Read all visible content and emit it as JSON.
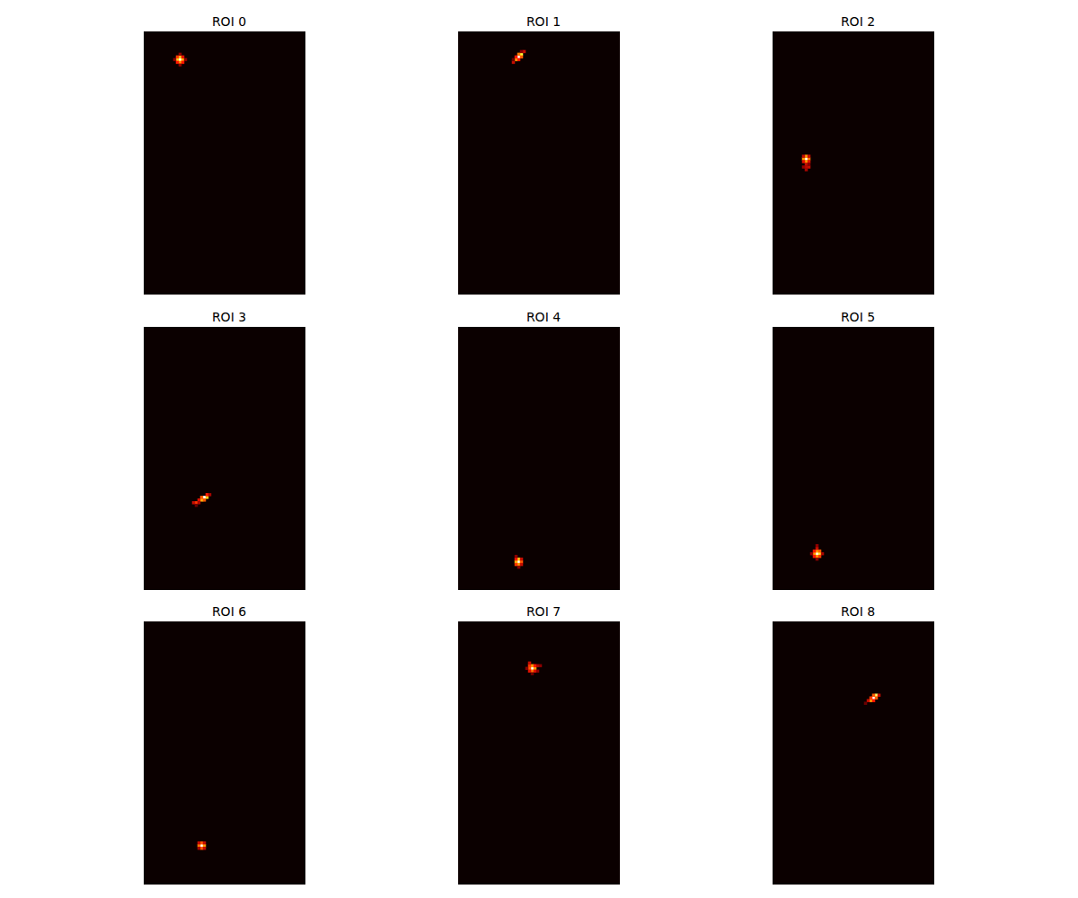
{
  "chart_data": [
    {
      "type": "heatmap",
      "title": "ROI 0",
      "shape": [
        98,
        60
      ],
      "color_range": [
        0,
        1
      ],
      "tick_labels": false,
      "cells": [
        [
          13,
          10,
          1
        ],
        [
          12,
          10,
          0.7
        ],
        [
          14,
          10,
          0.65
        ],
        [
          13,
          9,
          0.7
        ],
        [
          13,
          11,
          0.6
        ],
        [
          12,
          9,
          0.45
        ],
        [
          14,
          9,
          0.35
        ],
        [
          12,
          11,
          0.4
        ],
        [
          14,
          11,
          0.4
        ],
        [
          11,
          10,
          0.2
        ],
        [
          15,
          10,
          0.2
        ],
        [
          13,
          8,
          0.2
        ],
        [
          13,
          12,
          0.2
        ]
      ]
    },
    {
      "type": "heatmap",
      "title": "ROI 1",
      "shape": [
        98,
        60
      ],
      "color_range": [
        0,
        1
      ],
      "tick_labels": false,
      "cells": [
        [
          22,
          9,
          1
        ],
        [
          23,
          8,
          0.8
        ],
        [
          21,
          10,
          0.6
        ],
        [
          22,
          8,
          0.55
        ],
        [
          23,
          9,
          0.5
        ],
        [
          21,
          9,
          0.4
        ],
        [
          22,
          10,
          0.4
        ],
        [
          24,
          7,
          0.3
        ],
        [
          20,
          11,
          0.3
        ],
        [
          23,
          7,
          0.2
        ],
        [
          20,
          10,
          0.15
        ]
      ]
    },
    {
      "type": "heatmap",
      "title": "ROI 2",
      "shape": [
        98,
        60
      ],
      "color_range": [
        0,
        1
      ],
      "tick_labels": false,
      "cells": [
        [
          12,
          47,
          1
        ],
        [
          11,
          47,
          0.6
        ],
        [
          13,
          47,
          0.55
        ],
        [
          12,
          46,
          0.6
        ],
        [
          12,
          48,
          0.6
        ],
        [
          11,
          46,
          0.3
        ],
        [
          13,
          46,
          0.3
        ],
        [
          11,
          48,
          0.35
        ],
        [
          13,
          48,
          0.35
        ],
        [
          12,
          49,
          0.3
        ],
        [
          13,
          50,
          0.3
        ],
        [
          12,
          50,
          0.28
        ],
        [
          11,
          50,
          0.22
        ],
        [
          12,
          51,
          0.25
        ],
        [
          13,
          49,
          0.2
        ]
      ]
    },
    {
      "type": "heatmap",
      "title": "ROI 3",
      "shape": [
        98,
        60
      ],
      "color_range": [
        0,
        1
      ],
      "tick_labels": false,
      "cells": [
        [
          22,
          63,
          1
        ],
        [
          23,
          63,
          0.7
        ],
        [
          21,
          64,
          0.65
        ],
        [
          22,
          64,
          0.5
        ],
        [
          21,
          63,
          0.5
        ],
        [
          23,
          62,
          0.4
        ],
        [
          24,
          62,
          0.25
        ],
        [
          20,
          64,
          0.35
        ],
        [
          19,
          65,
          0.45
        ],
        [
          18,
          65,
          0.3
        ],
        [
          20,
          65,
          0.25
        ],
        [
          19,
          66,
          0.15
        ]
      ]
    },
    {
      "type": "heatmap",
      "title": "ROI 4",
      "shape": [
        98,
        60
      ],
      "color_range": [
        0,
        1
      ],
      "tick_labels": false,
      "cells": [
        [
          22,
          87,
          1
        ],
        [
          21,
          87,
          0.65
        ],
        [
          22,
          86,
          0.7
        ],
        [
          22,
          88,
          0.6
        ],
        [
          23,
          87,
          0.5
        ],
        [
          21,
          86,
          0.4
        ],
        [
          21,
          88,
          0.45
        ],
        [
          23,
          86,
          0.3
        ],
        [
          23,
          88,
          0.3
        ],
        [
          22,
          89,
          0.2
        ],
        [
          21,
          85,
          0.2
        ]
      ]
    },
    {
      "type": "heatmap",
      "title": "ROI 5",
      "shape": [
        98,
        60
      ],
      "color_range": [
        0,
        1
      ],
      "tick_labels": false,
      "cells": [
        [
          16,
          84,
          1
        ],
        [
          17,
          84,
          0.75
        ],
        [
          15,
          84,
          0.6
        ],
        [
          16,
          83,
          0.6
        ],
        [
          16,
          85,
          0.6
        ],
        [
          17,
          83,
          0.5
        ],
        [
          15,
          85,
          0.4
        ],
        [
          17,
          85,
          0.45
        ],
        [
          15,
          83,
          0.4
        ],
        [
          16,
          82,
          0.3
        ],
        [
          16,
          81,
          0.2
        ],
        [
          14,
          84,
          0.2
        ],
        [
          18,
          84,
          0.25
        ],
        [
          16,
          86,
          0.2
        ]
      ]
    },
    {
      "type": "heatmap",
      "title": "ROI 6",
      "shape": [
        98,
        60
      ],
      "color_range": [
        0,
        1
      ],
      "tick_labels": false,
      "cells": [
        [
          21,
          83,
          1
        ],
        [
          22,
          83,
          0.6
        ],
        [
          20,
          83,
          0.55
        ],
        [
          21,
          82,
          0.5
        ],
        [
          21,
          84,
          0.5
        ],
        [
          20,
          82,
          0.3
        ],
        [
          22,
          82,
          0.3
        ],
        [
          20,
          84,
          0.25
        ],
        [
          22,
          84,
          0.3
        ]
      ]
    },
    {
      "type": "heatmap",
      "title": "ROI 7",
      "shape": [
        98,
        60
      ],
      "color_range": [
        0,
        1
      ],
      "tick_labels": false,
      "cells": [
        [
          27,
          17,
          1
        ],
        [
          28,
          17,
          0.6
        ],
        [
          26,
          17,
          0.5
        ],
        [
          27,
          16,
          0.6
        ],
        [
          27,
          18,
          0.55
        ],
        [
          26,
          16,
          0.45
        ],
        [
          28,
          16,
          0.4
        ],
        [
          26,
          18,
          0.35
        ],
        [
          28,
          18,
          0.35
        ],
        [
          26,
          15,
          0.3
        ],
        [
          29,
          16,
          0.25
        ],
        [
          30,
          16,
          0.2
        ],
        [
          25,
          17,
          0.2
        ],
        [
          29,
          18,
          0.2
        ],
        [
          27,
          19,
          0.15
        ]
      ]
    },
    {
      "type": "heatmap",
      "title": "ROI 8",
      "shape": [
        98,
        60
      ],
      "color_range": [
        0,
        1
      ],
      "tick_labels": false,
      "cells": [
        [
          37,
          28,
          1
        ],
        [
          38,
          27,
          0.85
        ],
        [
          36,
          29,
          0.6
        ],
        [
          37,
          27,
          0.5
        ],
        [
          38,
          28,
          0.5
        ],
        [
          36,
          28,
          0.45
        ],
        [
          37,
          29,
          0.4
        ],
        [
          39,
          27,
          0.3
        ],
        [
          35,
          29,
          0.3
        ],
        [
          34,
          30,
          0.15
        ]
      ]
    }
  ]
}
